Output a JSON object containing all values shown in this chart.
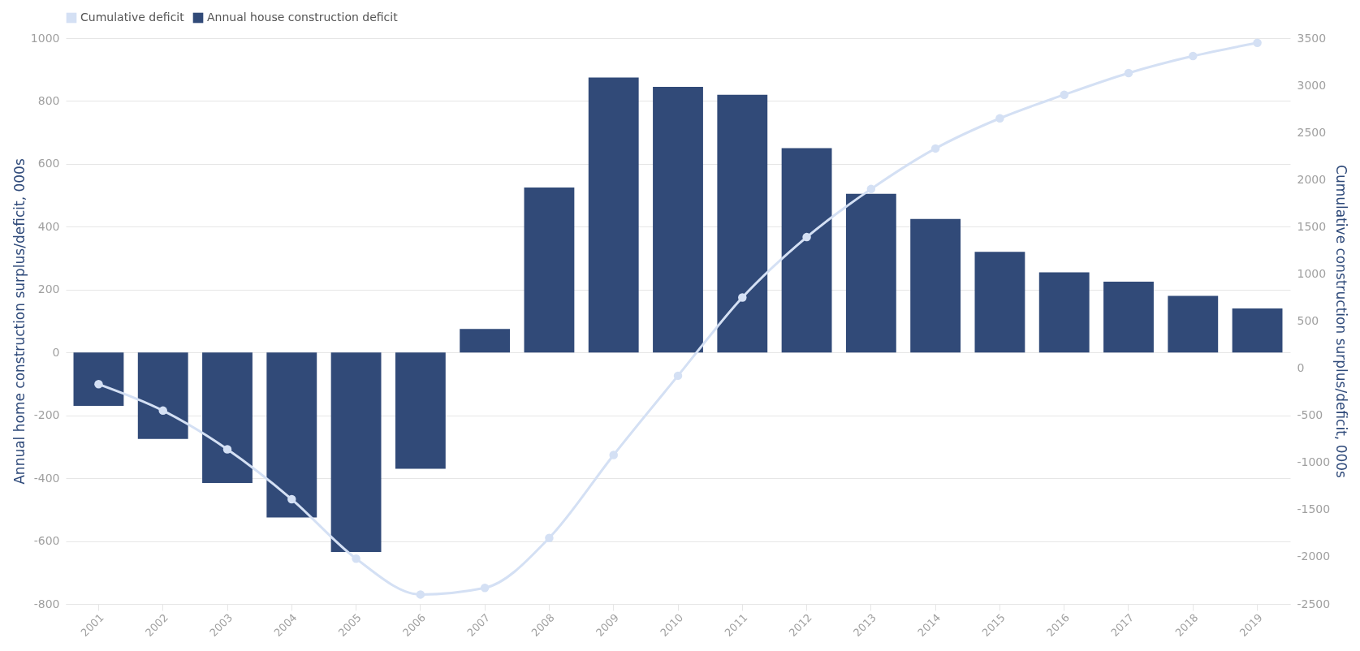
{
  "chart_data": {
    "type": "bar",
    "categories": [
      "2001",
      "2002",
      "2003",
      "2004",
      "2005",
      "2006",
      "2007",
      "2008",
      "2009",
      "2010",
      "2011",
      "2012",
      "2013",
      "2014",
      "2015",
      "2016",
      "2017",
      "2018",
      "2019"
    ],
    "ylabel": "Annual home construction surplus/deficit, 000s",
    "y2label": "Cumulative construction surplus/deficit, 000s",
    "series": [
      {
        "name": "Cumulative deficit",
        "type": "line",
        "axis": "y2",
        "color": "#d4e0f4",
        "values": [
          -170,
          -450,
          -860,
          -1390,
          -2020,
          -2400,
          -2330,
          -1800,
          -920,
          -80,
          750,
          1390,
          1900,
          2330,
          2650,
          2900,
          3130,
          3310,
          3450
        ]
      },
      {
        "name": "Annual house construction deficit",
        "color": "#314a78",
        "values": [
          -170,
          -275,
          -415,
          -525,
          -635,
          -370,
          75,
          525,
          875,
          845,
          820,
          650,
          505,
          425,
          320,
          255,
          225,
          180,
          140
        ]
      }
    ],
    "ylim": [
      -800,
      1000
    ],
    "yticks": [
      -800,
      -600,
      -400,
      -200,
      0,
      200,
      400,
      600,
      800,
      1000
    ],
    "y2lim": [
      -2500,
      3500
    ],
    "y2ticks": [
      -2500,
      -2000,
      -1500,
      -1000,
      -500,
      0,
      500,
      1000,
      1500,
      2000,
      2500,
      3000,
      3500
    ],
    "grid": "y",
    "legend": "top left",
    "marker": "circle",
    "line_style": "solid"
  }
}
